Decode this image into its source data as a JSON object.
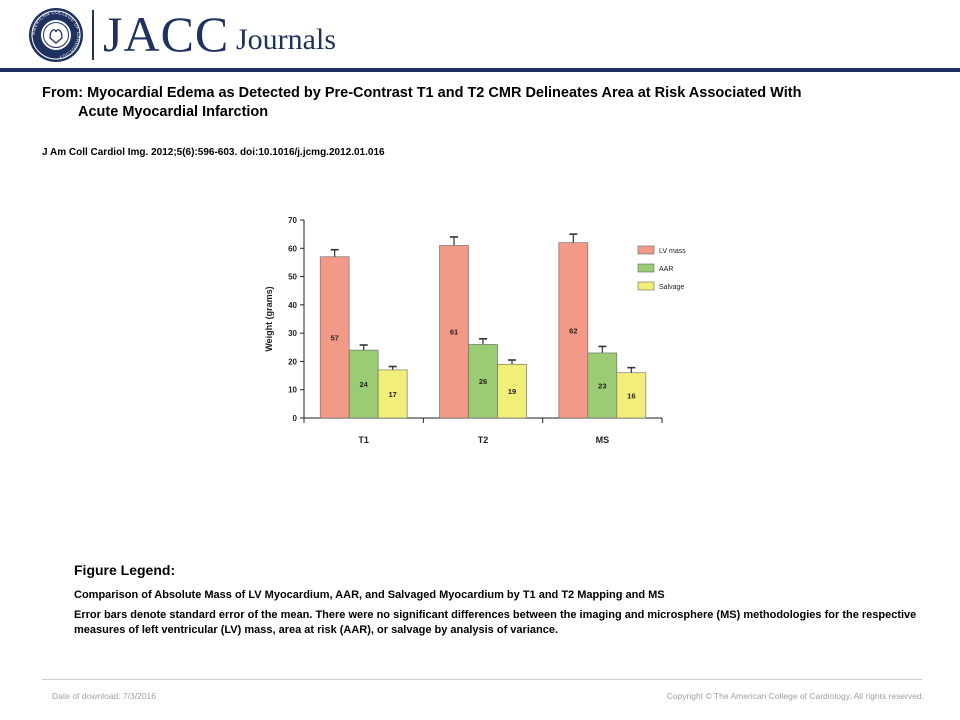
{
  "header": {
    "brand_main": "JACC",
    "brand_sub": "Journals",
    "seal_text": "AMERICAN COLLEGE OF CARDIOLOGY",
    "colors": {
      "brand": "#1e3160"
    }
  },
  "article": {
    "from_line1": "From: Myocardial Edema as Detected by Pre-Contrast T1 and T2 CMR Delineates Area at Risk Associated With",
    "from_line2": "Acute Myocardial Infarction",
    "citation": "J Am Coll Cardiol Img. 2012;5(6):596-603. doi:10.1016/j.jcmg.2012.01.016"
  },
  "chart_data": {
    "type": "bar",
    "title": "",
    "xlabel": "",
    "ylabel": "Weight (grams)",
    "ylim": [
      0,
      70
    ],
    "yticks": [
      0,
      10,
      20,
      30,
      40,
      50,
      60,
      70
    ],
    "categories": [
      "T1",
      "T2",
      "MS"
    ],
    "series": [
      {
        "name": "LV mass",
        "values": [
          57,
          61,
          62
        ],
        "errors": [
          2.5,
          3,
          3
        ],
        "color": "#f29a87"
      },
      {
        "name": "AAR",
        "values": [
          24,
          26,
          23
        ],
        "errors": [
          1.8,
          2,
          2.3
        ],
        "color": "#9bcc74"
      },
      {
        "name": "Salvage",
        "values": [
          17,
          19,
          16
        ],
        "errors": [
          1.2,
          1.5,
          1.8
        ],
        "color": "#f1ef7a"
      }
    ],
    "error_bars": true,
    "grid": false,
    "legend": "right"
  },
  "legend": {
    "heading": "Figure Legend:",
    "subtitle": "Comparison of Absolute Mass of LV Myocardium, AAR, and Salvaged Myocardium by T1 and T2 Mapping and MS",
    "text": "Error bars denote standard error of the mean. There were no significant differences between the imaging and microsphere (MS) methodologies for the respective measures of left ventricular (LV) mass, area at risk (AAR), or salvage by analysis of variance."
  },
  "footer": {
    "date": "Date of download: 7/3/2016",
    "copyright": "Copyright © The American College of Cardiology. All rights reserved."
  }
}
